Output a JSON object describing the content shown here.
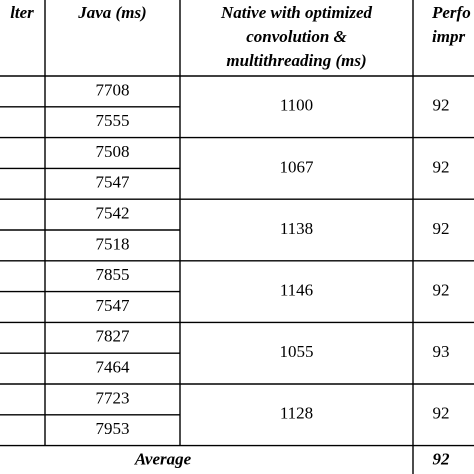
{
  "header": {
    "filter": "lter",
    "java": "Java (ms)",
    "native": [
      "Native with optimized",
      "convolution &",
      "multithreading (ms)"
    ],
    "perf": [
      "Perfo",
      "impr"
    ]
  },
  "rows": [
    {
      "java": [
        "7708",
        "7555"
      ],
      "native": "1100",
      "perf": "92"
    },
    {
      "java": [
        "7508",
        "7547"
      ],
      "native": "1067",
      "perf": "92"
    },
    {
      "java": [
        "7542",
        "7518"
      ],
      "native": "1138",
      "perf": "92"
    },
    {
      "java": [
        "7855",
        "7547"
      ],
      "native": "1146",
      "perf": "92"
    },
    {
      "java": [
        "7827",
        "7464"
      ],
      "native": "1055",
      "perf": "93"
    },
    {
      "java": [
        "7723",
        "7953"
      ],
      "native": "1128",
      "perf": "92"
    }
  ],
  "average": {
    "label": "Average",
    "perf": "92"
  }
}
